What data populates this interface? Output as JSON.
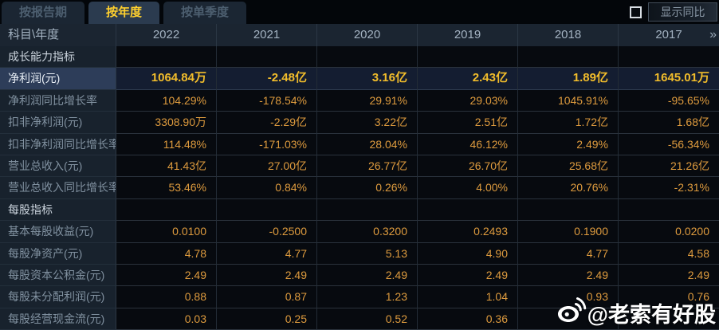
{
  "tabs": [
    {
      "label": "按报告期",
      "active": false
    },
    {
      "label": "按年度",
      "active": true
    },
    {
      "label": "按单季度",
      "active": false
    }
  ],
  "controls": {
    "show_yoy_label": "显示同比",
    "checkbox_checked": false
  },
  "table": {
    "corner_label": "科目\\年度",
    "years": [
      "2022",
      "2021",
      "2020",
      "2019",
      "2018",
      "2017"
    ],
    "more_icon_glyph": "»",
    "rows": [
      {
        "type": "section",
        "highlight": false,
        "label": "成长能力指标",
        "values": [
          "",
          "",
          "",
          "",
          "",
          ""
        ]
      },
      {
        "type": "data",
        "highlight": true,
        "label": "净利润(元)",
        "values": [
          "1064.84万",
          "-2.48亿",
          "3.16亿",
          "2.43亿",
          "1.89亿",
          "1645.01万"
        ]
      },
      {
        "type": "data",
        "highlight": false,
        "label": "净利润同比增长率",
        "values": [
          "104.29%",
          "-178.54%",
          "29.91%",
          "29.03%",
          "1045.91%",
          "-95.65%"
        ]
      },
      {
        "type": "data",
        "highlight": false,
        "label": "扣非净利润(元)",
        "values": [
          "3308.90万",
          "-2.29亿",
          "3.22亿",
          "2.51亿",
          "1.72亿",
          "1.68亿"
        ]
      },
      {
        "type": "data",
        "highlight": false,
        "label": "扣非净利润同比增长率",
        "values": [
          "114.48%",
          "-171.03%",
          "28.04%",
          "46.12%",
          "2.49%",
          "-56.34%"
        ]
      },
      {
        "type": "data",
        "highlight": false,
        "label": "营业总收入(元)",
        "values": [
          "41.43亿",
          "27.00亿",
          "26.77亿",
          "26.70亿",
          "25.68亿",
          "21.26亿"
        ]
      },
      {
        "type": "data",
        "highlight": false,
        "label": "营业总收入同比增长率",
        "values": [
          "53.46%",
          "0.84%",
          "0.26%",
          "4.00%",
          "20.76%",
          "-2.31%"
        ]
      },
      {
        "type": "section",
        "highlight": false,
        "label": "每股指标",
        "values": [
          "",
          "",
          "",
          "",
          "",
          ""
        ]
      },
      {
        "type": "data",
        "highlight": false,
        "label": "基本每股收益(元)",
        "values": [
          "0.0100",
          "-0.2500",
          "0.3200",
          "0.2493",
          "0.1900",
          "0.0200"
        ]
      },
      {
        "type": "data",
        "highlight": false,
        "label": "每股净资产(元)",
        "values": [
          "4.78",
          "4.77",
          "5.13",
          "4.90",
          "4.77",
          "4.58"
        ]
      },
      {
        "type": "data",
        "highlight": false,
        "label": "每股资本公积金(元)",
        "values": [
          "2.49",
          "2.49",
          "2.49",
          "2.49",
          "2.49",
          "2.49"
        ]
      },
      {
        "type": "data",
        "highlight": false,
        "label": "每股未分配利润(元)",
        "values": [
          "0.88",
          "0.87",
          "1.23",
          "1.04",
          "0.93",
          "0.76"
        ]
      },
      {
        "type": "data",
        "highlight": false,
        "label": "每股经营现金流(元)",
        "values": [
          "0.03",
          "0.25",
          "0.52",
          "0.36",
          "",
          ""
        ]
      }
    ]
  },
  "watermark": {
    "text": "@老索有好股",
    "icon": "weibo-icon"
  },
  "colors": {
    "tab_active_text": "#ffd02e",
    "value_orange": "#de9b3e",
    "highlight_gold": "#f2bd2b",
    "header_bg": "#1b2531",
    "label_col_bg": "#18222d",
    "highlight_row_bg": "#141d31"
  }
}
